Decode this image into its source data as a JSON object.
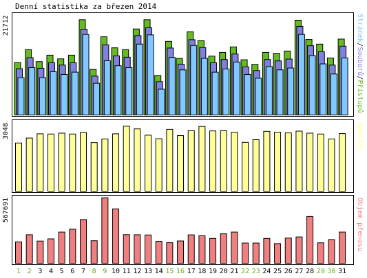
{
  "title": "Denní statistika za březen 2014",
  "colors": {
    "hits": "#66bb22",
    "files": "#8080e0",
    "pages": "#80c8ff",
    "visits": "#ffff99",
    "kbytes": "#f08080",
    "weekend": "#66aa22",
    "weekday": "#000000"
  },
  "chart_data": [
    {
      "type": "bar",
      "panel": "requests",
      "ymax_label": "21712",
      "label_parts": [
        "Stránek",
        "/",
        "Souborů",
        "/",
        "Přístupů"
      ],
      "ylim": [
        0,
        21712
      ],
      "categories": [
        "1",
        "2",
        "3",
        "4",
        "5",
        "6",
        "7",
        "8",
        "9",
        "10",
        "11",
        "12",
        "13",
        "14",
        "15",
        "16",
        "17",
        "18",
        "19",
        "20",
        "21",
        "22",
        "23",
        "24",
        "25",
        "26",
        "27",
        "28",
        "29",
        "30",
        "31"
      ],
      "weekend_days": [
        "1",
        "2",
        "8",
        "9",
        "15",
        "16",
        "22",
        "23",
        "29",
        "30"
      ],
      "series": [
        {
          "name": "Přístupů",
          "values": [
            11400,
            14200,
            11600,
            13000,
            12200,
            13000,
            20700,
            9900,
            17000,
            14600,
            14200,
            18700,
            20700,
            8600,
            16000,
            12300,
            18100,
            16200,
            12800,
            13600,
            14800,
            12000,
            11000,
            13600,
            13400,
            13900,
            20600,
            16400,
            15400,
            12400,
            16500
          ]
        },
        {
          "name": "Souborů",
          "values": [
            10800,
            13200,
            10900,
            12100,
            11600,
            12100,
            19400,
            9200,
            16000,
            13600,
            13300,
            18000,
            19700,
            8000,
            15300,
            11800,
            17100,
            15400,
            12100,
            12800,
            14000,
            11200,
            10400,
            12800,
            12500,
            12900,
            20000,
            15800,
            14500,
            11600,
            15700
          ]
        },
        {
          "name": "Stránek",
          "values": [
            9600,
            11800,
            9600,
            10900,
            10300,
            10800,
            19000,
            8400,
            13300,
            12200,
            11800,
            16900,
            18900,
            7100,
            14000,
            11300,
            16600,
            13800,
            10800,
            11500,
            13000,
            10300,
            9500,
            12000,
            11300,
            11700,
            19000,
            14400,
            12600,
            10400,
            13900
          ]
        }
      ]
    },
    {
      "type": "bar",
      "panel": "visits",
      "ymax_label": "3048",
      "label": "Návštěv",
      "ylim": [
        0,
        3048
      ],
      "categories": [
        "1",
        "2",
        "3",
        "4",
        "5",
        "6",
        "7",
        "8",
        "9",
        "10",
        "11",
        "12",
        "13",
        "14",
        "15",
        "16",
        "17",
        "18",
        "19",
        "20",
        "21",
        "22",
        "23",
        "24",
        "25",
        "26",
        "27",
        "28",
        "29",
        "30",
        "31"
      ],
      "series": [
        {
          "name": "Návštěv",
          "values": [
            2150,
            2370,
            2560,
            2550,
            2590,
            2550,
            2620,
            2170,
            2330,
            2560,
            2900,
            2780,
            2500,
            2340,
            2760,
            2480,
            2700,
            2890,
            2690,
            2700,
            2630,
            2180,
            2300,
            2670,
            2630,
            2600,
            2680,
            2590,
            2550,
            2330,
            2570
          ]
        }
      ]
    },
    {
      "type": "bar",
      "panel": "kbytes",
      "ymax_label": "567691",
      "label": "Objem přenosu",
      "ylim": [
        0,
        567691
      ],
      "categories": [
        "1",
        "2",
        "3",
        "4",
        "5",
        "6",
        "7",
        "8",
        "9",
        "10",
        "11",
        "12",
        "13",
        "14",
        "15",
        "16",
        "17",
        "18",
        "19",
        "20",
        "21",
        "22",
        "23",
        "24",
        "25",
        "26",
        "27",
        "28",
        "29",
        "30",
        "31"
      ],
      "series": [
        {
          "name": "Objem přenosu",
          "values": [
            185000,
            247000,
            192000,
            211000,
            270000,
            295000,
            378000,
            195000,
            567000,
            471000,
            248000,
            247000,
            245000,
            190000,
            178000,
            193000,
            246000,
            238000,
            215000,
            255000,
            270000,
            175000,
            175000,
            215000,
            170000,
            218000,
            228000,
            405000,
            177000,
            205000,
            270000
          ]
        }
      ]
    }
  ]
}
